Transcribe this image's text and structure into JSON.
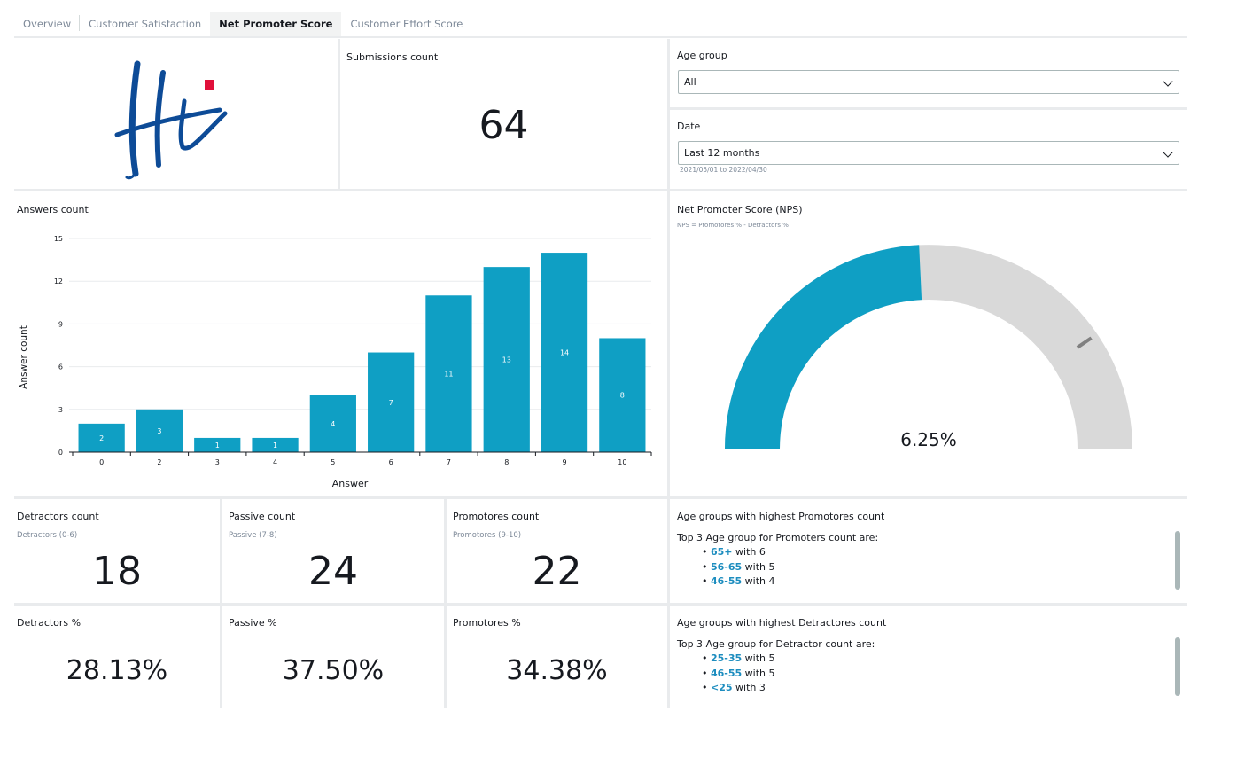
{
  "tabs": [
    {
      "label": "Overview"
    },
    {
      "label": "Customer Satisfaction"
    },
    {
      "label": "Net Promoter Score"
    },
    {
      "label": "Customer Effort Score"
    }
  ],
  "logo": {
    "text": "Hi",
    "dot_color": "#e0103a",
    "ink_color": "#0d4b97"
  },
  "submissions": {
    "title": "Submissions count",
    "value": "64"
  },
  "filters": {
    "age_group": {
      "title": "Age group",
      "value": "All"
    },
    "date": {
      "title": "Date",
      "value": "Last 12 months",
      "range": "2021/05/01 to 2022/04/30"
    }
  },
  "answers_chart": {
    "title": "Answers count",
    "ylabel": "Answer count",
    "xlabel": "Answer",
    "yticks": [
      "0",
      "3",
      "6",
      "9",
      "12",
      "15"
    ]
  },
  "chart_data": {
    "type": "bar",
    "categories": [
      "0",
      "2",
      "3",
      "4",
      "5",
      "6",
      "7",
      "8",
      "9",
      "10"
    ],
    "values": [
      2,
      3,
      1,
      1,
      4,
      7,
      11,
      13,
      14,
      8
    ],
    "ylim": [
      0,
      15
    ],
    "color": "#0f9fc4",
    "xlabel": "Answer",
    "ylabel": "Answer count",
    "title": "Answers count",
    "grid": true
  },
  "nps": {
    "title": "Net Promoter Score (NPS)",
    "subtitle": "NPS = Promotores % - Detractors %",
    "value": "6.25%",
    "fill_fraction": 0.485,
    "target_fraction": 0.81,
    "fill_color": "#0f9fc4",
    "track_color": "#d9d9d9"
  },
  "counts": {
    "detractors": {
      "title": "Detractors count",
      "sub": "Detractors (0-6)",
      "value": "18"
    },
    "passive": {
      "title": "Passive count",
      "sub": "Passive (7-8)",
      "value": "24"
    },
    "promotores": {
      "title": "Promotores count",
      "sub": "Promotores (9-10)",
      "value": "22"
    }
  },
  "percents": {
    "detractors": {
      "title": "Detractors %",
      "value": "28.13%"
    },
    "passive": {
      "title": "Passive %",
      "value": "37.50%"
    },
    "promotores": {
      "title": "Promotores %",
      "value": "34.38%"
    }
  },
  "top_promoters": {
    "title": "Age groups with highest Promotores count",
    "intro": "Top 3 Age group for Promoters count are:",
    "items": [
      {
        "group": "65+",
        "text": " with 6"
      },
      {
        "group": "56-65",
        "text": " with 5"
      },
      {
        "group": "46-55",
        "text": " with 4"
      }
    ]
  },
  "top_detractors": {
    "title": "Age groups with highest Detractores count",
    "intro": "Top 3 Age group for Detractor count are:",
    "items": [
      {
        "group": "25-35",
        "text": " with 5"
      },
      {
        "group": "46-55",
        "text": " with 5"
      },
      {
        "group": "<25",
        "text": " with 3"
      }
    ]
  }
}
